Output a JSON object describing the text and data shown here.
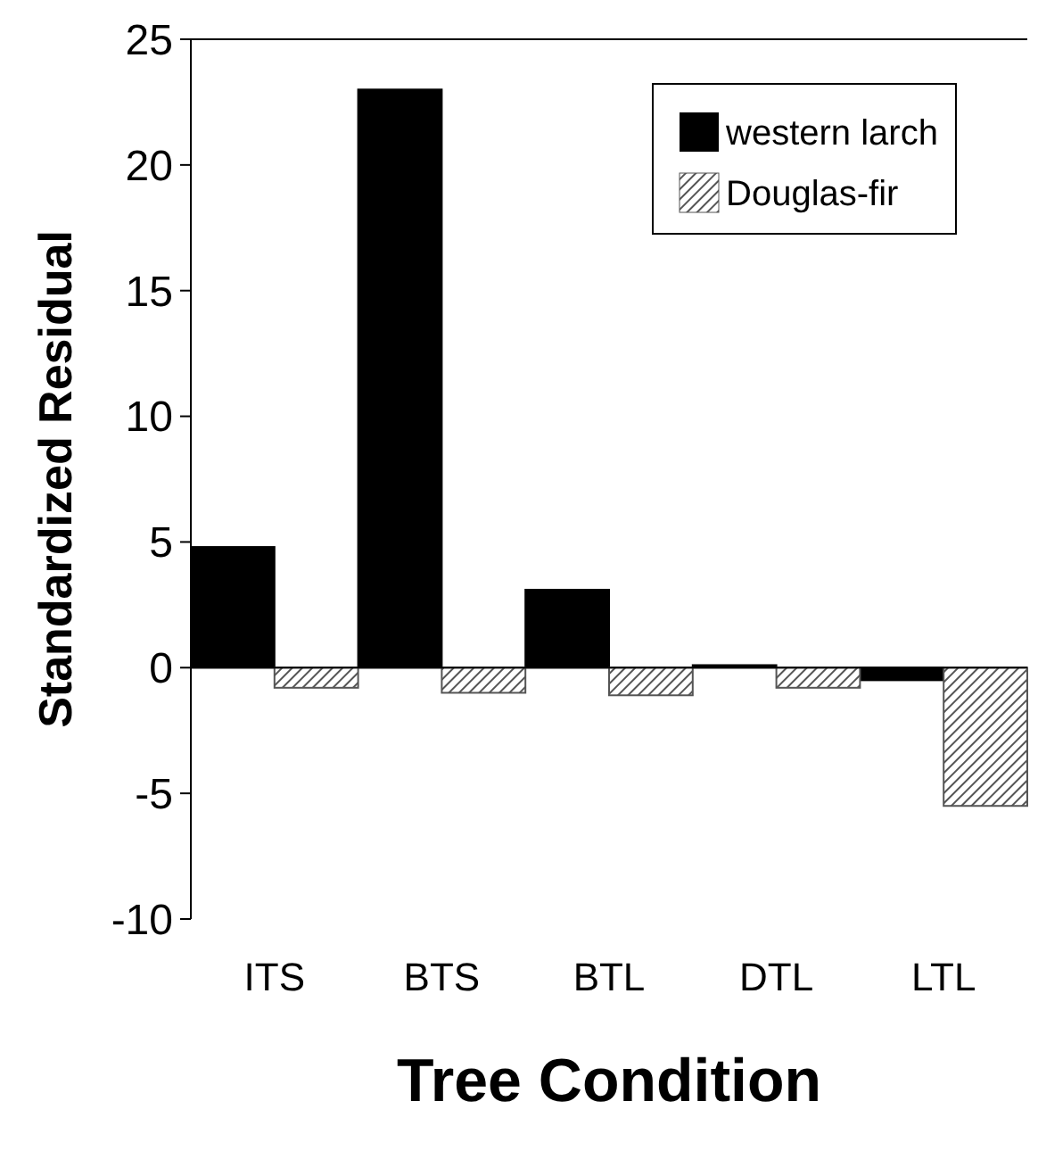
{
  "chart_data": {
    "type": "bar",
    "xlabel": "Tree Condition",
    "ylabel": "Standardized Residual",
    "categories": [
      "ITS",
      "BTS",
      "BTL",
      "DTL",
      "LTL"
    ],
    "series": [
      {
        "name": "western larch",
        "color": "#000000",
        "values": [
          4.8,
          23,
          3.1,
          0.1,
          -0.5
        ]
      },
      {
        "name": "Douglas-fir",
        "color": "#555555",
        "values": [
          -0.8,
          -1,
          -1.1,
          -0.8,
          -5.5
        ]
      }
    ],
    "ylim": [
      -10,
      25
    ],
    "yticks": [
      -10,
      -5,
      0,
      5,
      10,
      15,
      20,
      25
    ],
    "legend": "top right"
  }
}
